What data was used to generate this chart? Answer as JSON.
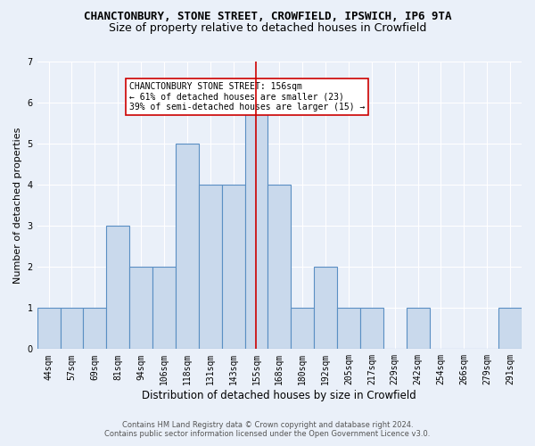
{
  "title1": "CHANCTONBURY, STONE STREET, CROWFIELD, IPSWICH, IP6 9TA",
  "title2": "Size of property relative to detached houses in Crowfield",
  "xlabel": "Distribution of detached houses by size in Crowfield",
  "ylabel": "Number of detached properties",
  "categories": [
    "44sqm",
    "57sqm",
    "69sqm",
    "81sqm",
    "94sqm",
    "106sqm",
    "118sqm",
    "131sqm",
    "143sqm",
    "155sqm",
    "168sqm",
    "180sqm",
    "192sqm",
    "205sqm",
    "217sqm",
    "229sqm",
    "242sqm",
    "254sqm",
    "266sqm",
    "279sqm",
    "291sqm"
  ],
  "values": [
    1,
    1,
    1,
    3,
    2,
    2,
    5,
    4,
    4,
    6,
    4,
    1,
    2,
    1,
    1,
    0,
    1,
    0,
    0,
    0,
    1
  ],
  "bar_color": "#c9d9ec",
  "bar_edge_color": "#5a8fc3",
  "marker_index": 9,
  "marker_color": "#cc0000",
  "ylim": [
    0,
    7
  ],
  "yticks": [
    0,
    1,
    2,
    3,
    4,
    5,
    6,
    7
  ],
  "annotation_title": "CHANCTONBURY STONE STREET: 156sqm",
  "annotation_line1": "← 61% of detached houses are smaller (23)",
  "annotation_line2": "39% of semi-detached houses are larger (15) →",
  "annotation_box_color": "#ffffff",
  "annotation_box_edge": "#cc0000",
  "footer1": "Contains HM Land Registry data © Crown copyright and database right 2024.",
  "footer2": "Contains public sector information licensed under the Open Government Licence v3.0.",
  "bg_color": "#eaf0f9",
  "grid_color": "#ffffff",
  "title_fontsize": 9,
  "subtitle_fontsize": 9,
  "axis_label_fontsize": 8,
  "tick_fontsize": 7,
  "footer_fontsize": 6,
  "ann_fontsize": 7
}
